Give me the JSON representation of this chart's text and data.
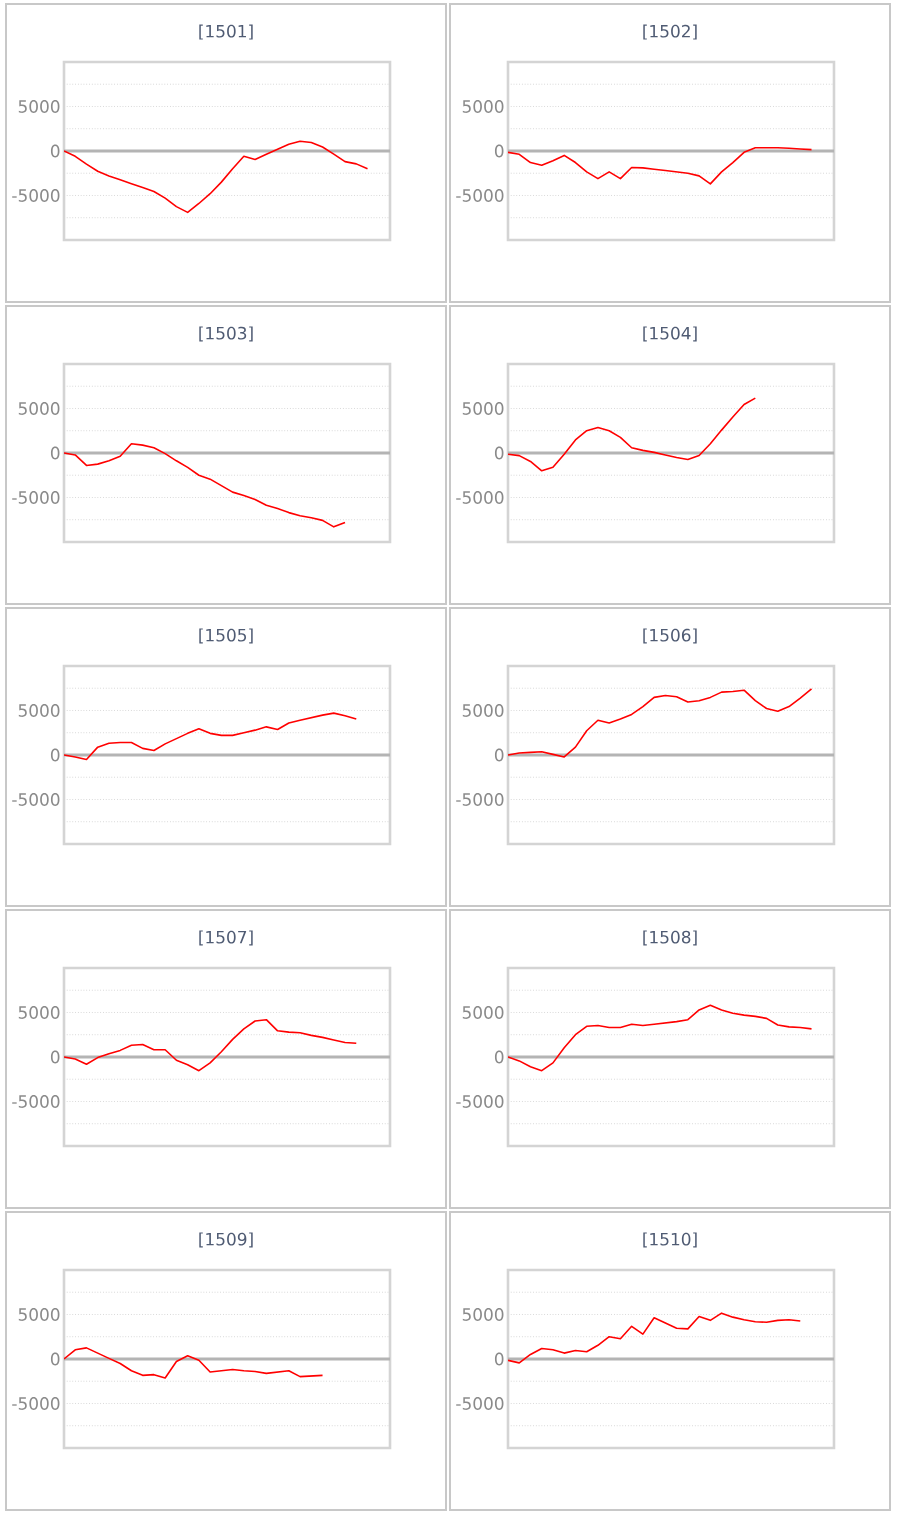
{
  "chart_data": [
    {
      "type": "line",
      "title": "[1501]",
      "categories": [
        null,
        null,
        null,
        null,
        null,
        null,
        null,
        null,
        null,
        null,
        null,
        null,
        null,
        null,
        null,
        null,
        null,
        null,
        null,
        null,
        null,
        null,
        null,
        null,
        null,
        null,
        null,
        null,
        null,
        null
      ],
      "series": [
        {
          "color": "#ff0000",
          "values": [
            0,
            -600,
            -1470,
            -2280,
            -2800,
            -3230,
            -3670,
            -4100,
            -4560,
            -5300,
            -6250,
            -6900,
            -5900,
            -4800,
            -3500,
            -2000,
            -600,
            -950,
            -370,
            200,
            750,
            1100,
            950,
            450,
            -350,
            -1200,
            -1450,
            -2000,
            null,
            null
          ]
        }
      ],
      "ylim": [
        -10000,
        10000
      ],
      "yticks": [
        {
          "value": -7500,
          "label": null
        },
        -5000,
        {
          "value": -2500,
          "label": null
        },
        0,
        {
          "value": 2500,
          "label": null
        },
        5000,
        {
          "value": 7500,
          "label": null
        }
      ],
      "grid": "y",
      "tick_labels": "y",
      "ref_lines": [
        {
          "axis": "y",
          "value": 0,
          "color": "#b4b4b4"
        }
      ]
    },
    {
      "type": "line",
      "title": "[1502]",
      "categories": [
        null,
        null,
        null,
        null,
        null,
        null,
        null,
        null,
        null,
        null,
        null,
        null,
        null,
        null,
        null,
        null,
        null,
        null,
        null,
        null,
        null,
        null,
        null,
        null,
        null,
        null,
        null,
        null,
        null,
        null
      ],
      "series": [
        {
          "color": "#ff0000",
          "values": [
            -150,
            -370,
            -1300,
            -1600,
            -1100,
            -500,
            -1300,
            -2350,
            -3100,
            -2350,
            -3100,
            -1850,
            -1900,
            -2050,
            -2200,
            -2350,
            -2500,
            -2800,
            -3700,
            -2350,
            -1300,
            -150,
            370,
            370,
            370,
            300,
            220,
            150,
            null,
            null
          ]
        }
      ],
      "ylim": [
        -10000,
        10000
      ],
      "yticks": [
        {
          "value": -7500,
          "label": null
        },
        -5000,
        {
          "value": -2500,
          "label": null
        },
        0,
        {
          "value": 2500,
          "label": null
        },
        5000,
        {
          "value": 7500,
          "label": null
        }
      ],
      "grid": "y",
      "tick_labels": "y",
      "ref_lines": [
        {
          "axis": "y",
          "value": 0,
          "color": "#b4b4b4"
        }
      ]
    },
    {
      "type": "line",
      "title": "[1503]",
      "categories": [
        null,
        null,
        null,
        null,
        null,
        null,
        null,
        null,
        null,
        null,
        null,
        null,
        null,
        null,
        null,
        null,
        null,
        null,
        null,
        null,
        null,
        null,
        null,
        null,
        null,
        null,
        null,
        null,
        null,
        null
      ],
      "series": [
        {
          "color": "#ff0000",
          "values": [
            0,
            -220,
            -1400,
            -1250,
            -880,
            -370,
            1030,
            880,
            590,
            -70,
            -880,
            -1620,
            -2500,
            -2940,
            -3670,
            -4400,
            -4780,
            -5220,
            -5880,
            -6250,
            -6700,
            -7060,
            -7280,
            -7570,
            -8300,
            -7800,
            null,
            null,
            null,
            null
          ]
        }
      ],
      "ylim": [
        -10000,
        10000
      ],
      "yticks": [
        {
          "value": -7500,
          "label": null
        },
        -5000,
        {
          "value": -2500,
          "label": null
        },
        0,
        {
          "value": 2500,
          "label": null
        },
        5000,
        {
          "value": 7500,
          "label": null
        }
      ],
      "grid": "y",
      "tick_labels": "y",
      "ref_lines": [
        {
          "axis": "y",
          "value": 0,
          "color": "#b4b4b4"
        }
      ]
    },
    {
      "type": "line",
      "title": "[1504]",
      "categories": [
        null,
        null,
        null,
        null,
        null,
        null,
        null,
        null,
        null,
        null,
        null,
        null,
        null,
        null,
        null,
        null,
        null,
        null,
        null,
        null,
        null,
        null,
        null,
        null,
        null,
        null,
        null,
        null,
        null,
        null
      ],
      "series": [
        {
          "color": "#ff0000",
          "values": [
            -150,
            -300,
            -950,
            -2000,
            -1600,
            -150,
            1470,
            2500,
            2870,
            2500,
            1760,
            590,
            290,
            70,
            -220,
            -510,
            -740,
            -290,
            1030,
            2570,
            4040,
            5440,
            6170,
            null,
            null,
            null,
            null,
            null,
            null,
            null
          ]
        }
      ],
      "ylim": [
        -10000,
        10000
      ],
      "yticks": [
        {
          "value": -7500,
          "label": null
        },
        -5000,
        {
          "value": -2500,
          "label": null
        },
        0,
        {
          "value": 2500,
          "label": null
        },
        5000,
        {
          "value": 7500,
          "label": null
        }
      ],
      "grid": "y",
      "tick_labels": "y",
      "ref_lines": [
        {
          "axis": "y",
          "value": 0,
          "color": "#b4b4b4"
        }
      ]
    },
    {
      "type": "line",
      "title": "[1505]",
      "categories": [
        null,
        null,
        null,
        null,
        null,
        null,
        null,
        null,
        null,
        null,
        null,
        null,
        null,
        null,
        null,
        null,
        null,
        null,
        null,
        null,
        null,
        null,
        null,
        null,
        null,
        null,
        null,
        null,
        null,
        null
      ],
      "series": [
        {
          "color": "#ff0000",
          "values": [
            0,
            -220,
            -510,
            880,
            1320,
            1400,
            1400,
            740,
            510,
            1250,
            1840,
            2430,
            2940,
            2430,
            2200,
            2200,
            2500,
            2790,
            3160,
            2870,
            3600,
            3900,
            4190,
            4480,
            4700,
            4410,
            4040,
            null,
            null,
            null
          ]
        }
      ],
      "ylim": [
        -10000,
        10000
      ],
      "yticks": [
        {
          "value": -7500,
          "label": null
        },
        -5000,
        {
          "value": -2500,
          "label": null
        },
        0,
        {
          "value": 2500,
          "label": null
        },
        5000,
        {
          "value": 7500,
          "label": null
        }
      ],
      "grid": "y",
      "tick_labels": "y",
      "ref_lines": [
        {
          "axis": "y",
          "value": 0,
          "color": "#b4b4b4"
        }
      ]
    },
    {
      "type": "line",
      "title": "[1506]",
      "categories": [
        null,
        null,
        null,
        null,
        null,
        null,
        null,
        null,
        null,
        null,
        null,
        null,
        null,
        null,
        null,
        null,
        null,
        null,
        null,
        null,
        null,
        null,
        null,
        null,
        null,
        null,
        null,
        null,
        null,
        null
      ],
      "series": [
        {
          "color": "#ff0000",
          "values": [
            0,
            220,
            290,
            370,
            70,
            -220,
            880,
            2720,
            3900,
            3600,
            4040,
            4560,
            5440,
            6470,
            6690,
            6540,
            5950,
            6100,
            6470,
            7060,
            7130,
            7280,
            6100,
            5220,
            4920,
            5440,
            6400,
            7420,
            null,
            null
          ]
        }
      ],
      "ylim": [
        -10000,
        10000
      ],
      "yticks": [
        {
          "value": -7500,
          "label": null
        },
        -5000,
        {
          "value": -2500,
          "label": null
        },
        0,
        {
          "value": 2500,
          "label": null
        },
        5000,
        {
          "value": 7500,
          "label": null
        }
      ],
      "grid": "y",
      "tick_labels": "y",
      "ref_lines": [
        {
          "axis": "y",
          "value": 0,
          "color": "#b4b4b4"
        }
      ]
    },
    {
      "type": "line",
      "title": "[1507]",
      "categories": [
        null,
        null,
        null,
        null,
        null,
        null,
        null,
        null,
        null,
        null,
        null,
        null,
        null,
        null,
        null,
        null,
        null,
        null,
        null,
        null,
        null,
        null,
        null,
        null,
        null,
        null,
        null,
        null,
        null,
        null
      ],
      "series": [
        {
          "color": "#ff0000",
          "values": [
            0,
            -220,
            -810,
            -70,
            370,
            740,
            1320,
            1400,
            810,
            810,
            -370,
            -880,
            -1540,
            -660,
            590,
            1980,
            3160,
            4040,
            4190,
            2940,
            2790,
            2720,
            2430,
            2200,
            1910,
            1620,
            1540,
            null,
            null,
            null
          ]
        }
      ],
      "ylim": [
        -10000,
        10000
      ],
      "yticks": [
        {
          "value": -7500,
          "label": null
        },
        -5000,
        {
          "value": -2500,
          "label": null
        },
        0,
        {
          "value": 2500,
          "label": null
        },
        5000,
        {
          "value": 7500,
          "label": null
        }
      ],
      "grid": "y",
      "tick_labels": "y",
      "ref_lines": [
        {
          "axis": "y",
          "value": 0,
          "color": "#b4b4b4"
        }
      ]
    },
    {
      "type": "line",
      "title": "[1508]",
      "categories": [
        null,
        null,
        null,
        null,
        null,
        null,
        null,
        null,
        null,
        null,
        null,
        null,
        null,
        null,
        null,
        null,
        null,
        null,
        null,
        null,
        null,
        null,
        null,
        null,
        null,
        null,
        null,
        null,
        null,
        null
      ],
      "series": [
        {
          "color": "#ff0000",
          "values": [
            0,
            -440,
            -1100,
            -1540,
            -660,
            1030,
            2500,
            3450,
            3530,
            3310,
            3310,
            3670,
            3530,
            3670,
            3820,
            3970,
            4190,
            5290,
            5810,
            5290,
            4920,
            4700,
            4560,
            4340,
            3600,
            3380,
            3310,
            3160,
            null,
            null
          ]
        }
      ],
      "ylim": [
        -10000,
        10000
      ],
      "yticks": [
        {
          "value": -7500,
          "label": null
        },
        -5000,
        {
          "value": -2500,
          "label": null
        },
        0,
        {
          "value": 2500,
          "label": null
        },
        5000,
        {
          "value": 7500,
          "label": null
        }
      ],
      "grid": "y",
      "tick_labels": "y",
      "ref_lines": [
        {
          "axis": "y",
          "value": 0,
          "color": "#b4b4b4"
        }
      ]
    },
    {
      "type": "line",
      "title": "[1509]",
      "categories": [
        null,
        null,
        null,
        null,
        null,
        null,
        null,
        null,
        null,
        null,
        null,
        null,
        null,
        null,
        null,
        null,
        null,
        null,
        null,
        null,
        null,
        null,
        null,
        null,
        null,
        null,
        null,
        null,
        null,
        null
      ],
      "series": [
        {
          "color": "#ff0000",
          "values": [
            0,
            1030,
            1250,
            660,
            70,
            -510,
            -1320,
            -1840,
            -1760,
            -2130,
            -290,
            370,
            -150,
            -1470,
            -1320,
            -1180,
            -1320,
            -1400,
            -1620,
            -1470,
            -1320,
            -1980,
            -1910,
            -1840,
            null,
            null,
            null,
            null,
            null,
            null
          ]
        }
      ],
      "ylim": [
        -10000,
        10000
      ],
      "yticks": [
        {
          "value": -7500,
          "label": null
        },
        -5000,
        {
          "value": -2500,
          "label": null
        },
        0,
        {
          "value": 2500,
          "label": null
        },
        5000,
        {
          "value": 7500,
          "label": null
        }
      ],
      "grid": "y",
      "tick_labels": "y",
      "ref_lines": [
        {
          "axis": "y",
          "value": 0,
          "color": "#b4b4b4"
        }
      ]
    },
    {
      "type": "line",
      "title": "[1510]",
      "categories": [
        null,
        null,
        null,
        null,
        null,
        null,
        null,
        null,
        null,
        null,
        null,
        null,
        null,
        null,
        null,
        null,
        null,
        null,
        null,
        null,
        null,
        null,
        null,
        null,
        null,
        null,
        null,
        null,
        null,
        null
      ],
      "series": [
        {
          "color": "#ff0000",
          "values": [
            -150,
            -440,
            510,
            1180,
            1030,
            660,
            950,
            810,
            1540,
            2500,
            2280,
            3670,
            2790,
            4630,
            4040,
            3450,
            3380,
            4780,
            4340,
            5150,
            4700,
            4410,
            4190,
            4120,
            4340,
            4410,
            4260,
            null,
            null,
            null
          ]
        }
      ],
      "ylim": [
        -10000,
        10000
      ],
      "yticks": [
        {
          "value": -7500,
          "label": null
        },
        -5000,
        {
          "value": -2500,
          "label": null
        },
        0,
        {
          "value": 2500,
          "label": null
        },
        5000,
        {
          "value": 7500,
          "label": null
        }
      ],
      "grid": "y",
      "tick_labels": "y",
      "ref_lines": [
        {
          "axis": "y",
          "value": 0,
          "color": "#b4b4b4"
        }
      ]
    }
  ]
}
